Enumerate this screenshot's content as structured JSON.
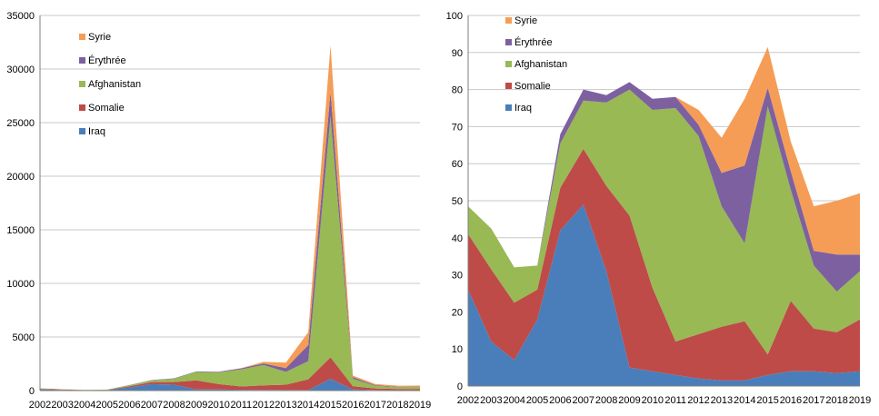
{
  "chart_data": [
    {
      "type": "area",
      "stacked": true,
      "categories": [
        "2002",
        "2003",
        "2004",
        "2005",
        "2006",
        "2007",
        "2008",
        "2009",
        "2010",
        "2011",
        "2012",
        "2013",
        "2014",
        "2015",
        "2016",
        "2017",
        "2018",
        "2019"
      ],
      "ylim": [
        0,
        35000
      ],
      "yticks": [
        0,
        5000,
        10000,
        15000,
        20000,
        25000,
        30000,
        35000
      ],
      "grid": true,
      "legend_position": "top-left",
      "series": [
        {
          "name": "Iraq",
          "color": "#4a7ebb",
          "values": [
            100,
            60,
            20,
            40,
            300,
            600,
            550,
            100,
            100,
            80,
            80,
            50,
            50,
            1100,
            100,
            50,
            40,
            30
          ]
        },
        {
          "name": "Somalie",
          "color": "#be4b48",
          "values": [
            60,
            40,
            20,
            30,
            100,
            200,
            250,
            850,
            500,
            300,
            400,
            500,
            1000,
            2000,
            300,
            150,
            100,
            100
          ]
        },
        {
          "name": "Afghanistan",
          "color": "#98b954",
          "values": [
            50,
            30,
            20,
            20,
            100,
            150,
            300,
            800,
            1100,
            1600,
            1900,
            1200,
            1700,
            22500,
            700,
            250,
            180,
            200
          ]
        },
        {
          "name": "Érythrée",
          "color": "#7d60a0",
          "values": [
            0,
            0,
            0,
            0,
            20,
            30,
            40,
            40,
            60,
            100,
            150,
            350,
            1500,
            2300,
            150,
            60,
            40,
            40
          ]
        },
        {
          "name": "Syrie",
          "color": "#f59d56",
          "values": [
            0,
            0,
            0,
            0,
            0,
            0,
            0,
            0,
            0,
            20,
            150,
            500,
            1200,
            4300,
            150,
            100,
            100,
            100
          ]
        }
      ]
    },
    {
      "type": "area",
      "stacked": true,
      "categories": [
        "2002",
        "2003",
        "2004",
        "2005",
        "2006",
        "2007",
        "2008",
        "2009",
        "2010",
        "2011",
        "2012",
        "2013",
        "2014",
        "2015",
        "2016",
        "2017",
        "2018",
        "2019"
      ],
      "ylim": [
        0,
        100
      ],
      "yticks": [
        0,
        10,
        20,
        30,
        40,
        50,
        60,
        70,
        80,
        90,
        100
      ],
      "grid": true,
      "legend_position": "top-left",
      "series": [
        {
          "name": "Iraq",
          "color": "#4a7ebb",
          "values": [
            26,
            12,
            7,
            18,
            42,
            49,
            31,
            5,
            4,
            3,
            2,
            1.5,
            1.5,
            3,
            4,
            4,
            3.5,
            4
          ]
        },
        {
          "name": "Somalie",
          "color": "#be4b48",
          "values": [
            15,
            19.5,
            15.5,
            8,
            11.5,
            15,
            23,
            41,
            22.5,
            9,
            12,
            14.5,
            16,
            5.5,
            19,
            11.5,
            11,
            14
          ]
        },
        {
          "name": "Afghanistan",
          "color": "#98b954",
          "values": [
            7.5,
            11,
            9.5,
            6.5,
            12,
            13,
            22.5,
            34,
            48,
            63,
            53.5,
            32.5,
            21,
            67,
            30,
            17,
            11,
            13
          ]
        },
        {
          "name": "Érythrée",
          "color": "#7d60a0",
          "values": [
            0,
            0,
            0,
            0,
            2.5,
            3,
            2,
            2,
            3,
            3,
            3,
            9,
            21,
            5,
            5,
            4,
            10,
            4.5
          ]
        },
        {
          "name": "Syrie",
          "color": "#f59d56",
          "values": [
            0,
            0,
            0,
            0,
            0,
            0,
            0,
            0,
            0,
            0,
            4,
            9.5,
            18,
            11,
            8,
            12,
            14.5,
            16.5
          ]
        }
      ]
    }
  ]
}
